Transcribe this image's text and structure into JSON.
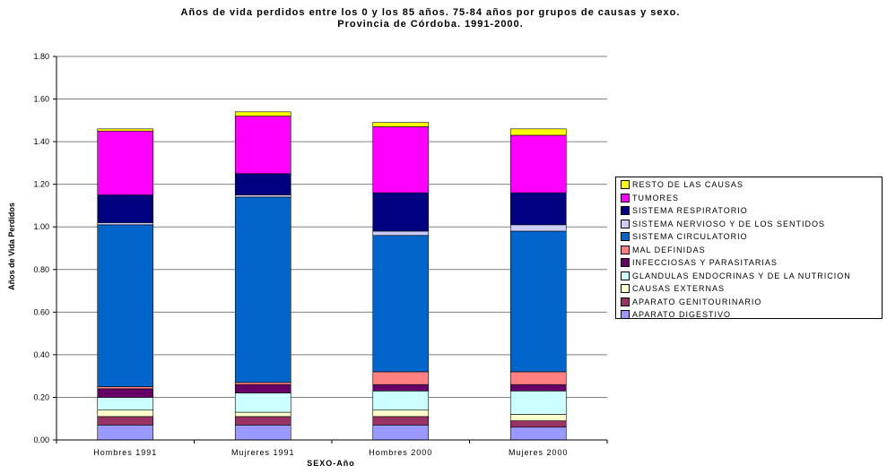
{
  "chart_data": {
    "type": "bar",
    "stacked": true,
    "title": "Años de vida perdidos entre los 0 y los 85 años. 75-84 años por grupos de causas y sexo.",
    "subtitle": "Provincia de Córdoba. 1991-2000.",
    "xlabel": "SEXO-Año",
    "ylabel": "Años de Vida Perdidos",
    "ylim": [
      0,
      1.8
    ],
    "yticks": [
      "0.00",
      "0.20",
      "0.40",
      "0.60",
      "0.80",
      "1.00",
      "1.20",
      "1.40",
      "1.60",
      "1.80"
    ],
    "grid": true,
    "legend_position": "right",
    "categories": [
      "Hombres 1991",
      "Mujreres 1991",
      "Hombres 2000",
      "Mujeres 2000"
    ],
    "series": [
      {
        "name": "APARATO DIGESTIVO",
        "color": "#9999ff",
        "values": [
          0.07,
          0.07,
          0.07,
          0.06
        ]
      },
      {
        "name": "APARATO GENITOURINARIO",
        "color": "#993366",
        "values": [
          0.04,
          0.04,
          0.04,
          0.03
        ]
      },
      {
        "name": "CAUSAS EXTERNAS",
        "color": "#ffffcc",
        "values": [
          0.03,
          0.02,
          0.03,
          0.03
        ]
      },
      {
        "name": "GLANDULAS ENDOCRINAS Y DE LA NUTRICION",
        "color": "#ccffff",
        "values": [
          0.06,
          0.09,
          0.09,
          0.11
        ]
      },
      {
        "name": "INFECCIOSAS Y PARASITARIAS",
        "color": "#660066",
        "values": [
          0.04,
          0.04,
          0.03,
          0.03
        ]
      },
      {
        "name": "MAL DEFINIDAS",
        "color": "#ff8080",
        "values": [
          0.01,
          0.01,
          0.06,
          0.06
        ]
      },
      {
        "name": "SISTEMA CIRCULATORIO",
        "color": "#0066cc",
        "values": [
          0.76,
          0.87,
          0.64,
          0.66
        ]
      },
      {
        "name": "SISTEMA NERVIOSO Y DE LOS SENTIDOS",
        "color": "#ccccff",
        "values": [
          0.01,
          0.01,
          0.02,
          0.03
        ]
      },
      {
        "name": "SISTEMA RESPIRATORIO",
        "color": "#000080",
        "values": [
          0.13,
          0.1,
          0.18,
          0.15
        ]
      },
      {
        "name": "TUMORES",
        "color": "#ff00ff",
        "values": [
          0.3,
          0.27,
          0.31,
          0.27
        ]
      },
      {
        "name": "RESTO DE LAS CAUSAS",
        "color": "#ffff00",
        "values": [
          0.01,
          0.02,
          0.02,
          0.03
        ]
      }
    ]
  }
}
